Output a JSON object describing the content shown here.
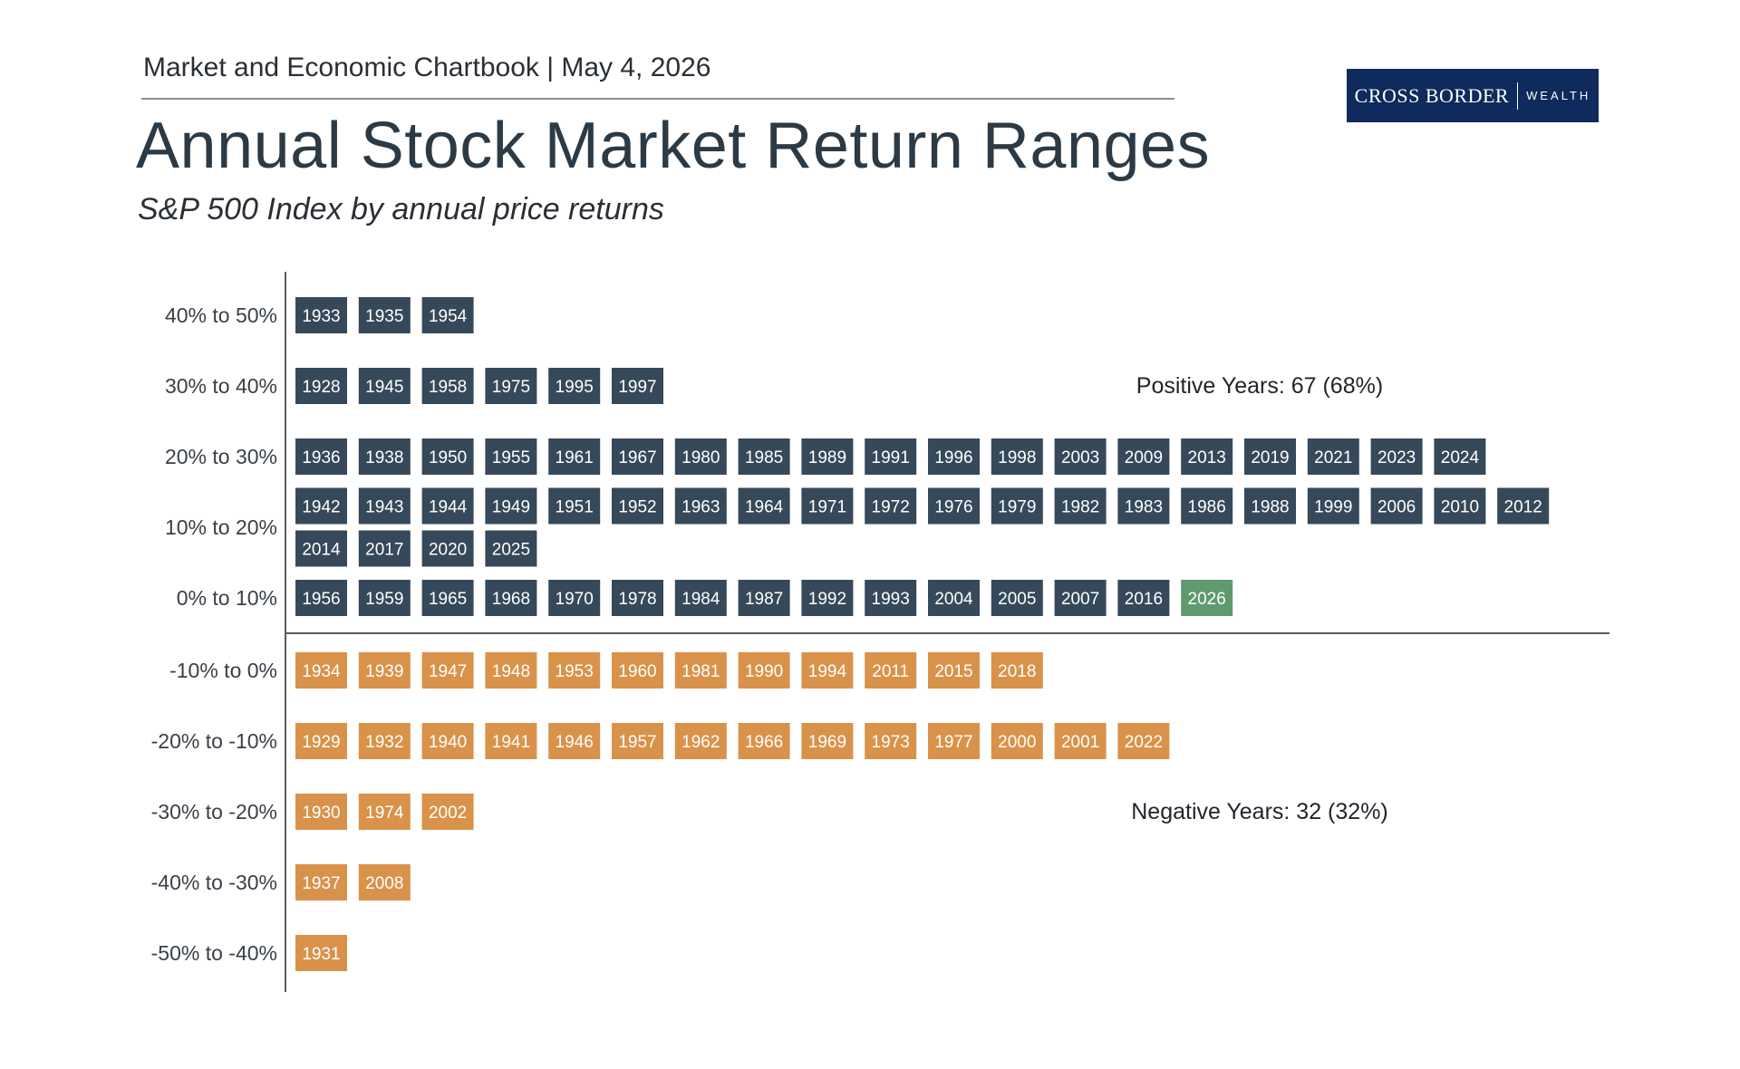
{
  "header": {
    "subtitle_line": "Market and Economic Chartbook | May 4, 2026",
    "title": "Annual Stock Market Return Ranges",
    "subtitle": "S&P 500 Index by annual price returns"
  },
  "logo": {
    "main": "CROSS BORDER",
    "secondary": "WEALTH",
    "color": "#0f2a5c"
  },
  "colors": {
    "positive": "#35495a",
    "negative": "#d9924a",
    "highlight": "#5f9a6e",
    "axis": "#555b62"
  },
  "chart_data": {
    "type": "table",
    "title": "Annual Stock Market Return Ranges",
    "subtitle": "S&P 500 Index by annual price returns",
    "rows": [
      {
        "range": "40% to 50%",
        "sign": "positive",
        "years": [
          "1933",
          "1935",
          "1954"
        ]
      },
      {
        "range": "30% to 40%",
        "sign": "positive",
        "years": [
          "1928",
          "1945",
          "1958",
          "1975",
          "1995",
          "1997"
        ]
      },
      {
        "range": "20% to 30%",
        "sign": "positive",
        "years": [
          "1936",
          "1938",
          "1950",
          "1955",
          "1961",
          "1967",
          "1980",
          "1985",
          "1989",
          "1991",
          "1996",
          "1998",
          "2003",
          "2009",
          "2013",
          "2019",
          "2021",
          "2023",
          "2024"
        ]
      },
      {
        "range": "10% to 20%",
        "sign": "positive",
        "years": [
          "1942",
          "1943",
          "1944",
          "1949",
          "1951",
          "1952",
          "1963",
          "1964",
          "1971",
          "1972",
          "1976",
          "1979",
          "1982",
          "1983",
          "1986",
          "1988",
          "1999",
          "2006",
          "2010",
          "2012",
          "2014",
          "2017",
          "2020",
          "2025"
        ]
      },
      {
        "range": "0% to 10%",
        "sign": "positive",
        "years": [
          "1956",
          "1959",
          "1965",
          "1968",
          "1970",
          "1978",
          "1984",
          "1987",
          "1992",
          "1993",
          "2004",
          "2005",
          "2007",
          "2016",
          "2026"
        ],
        "highlight": [
          "2026"
        ]
      },
      {
        "range": "-10% to 0%",
        "sign": "negative",
        "years": [
          "1934",
          "1939",
          "1947",
          "1948",
          "1953",
          "1960",
          "1981",
          "1990",
          "1994",
          "2011",
          "2015",
          "2018"
        ]
      },
      {
        "range": "-20% to -10%",
        "sign": "negative",
        "years": [
          "1929",
          "1932",
          "1940",
          "1941",
          "1946",
          "1957",
          "1962",
          "1966",
          "1969",
          "1973",
          "1977",
          "2000",
          "2001",
          "2022"
        ]
      },
      {
        "range": "-30% to -20%",
        "sign": "negative",
        "years": [
          "1930",
          "1974",
          "2002"
        ]
      },
      {
        "range": "-40% to -30%",
        "sign": "negative",
        "years": [
          "1937",
          "2008"
        ]
      },
      {
        "range": "-50% to -40%",
        "sign": "negative",
        "years": [
          "1931"
        ]
      }
    ],
    "annotations": {
      "positive": "Positive Years: 67 (68%)",
      "negative": "Negative Years: 32 (32%)"
    }
  }
}
